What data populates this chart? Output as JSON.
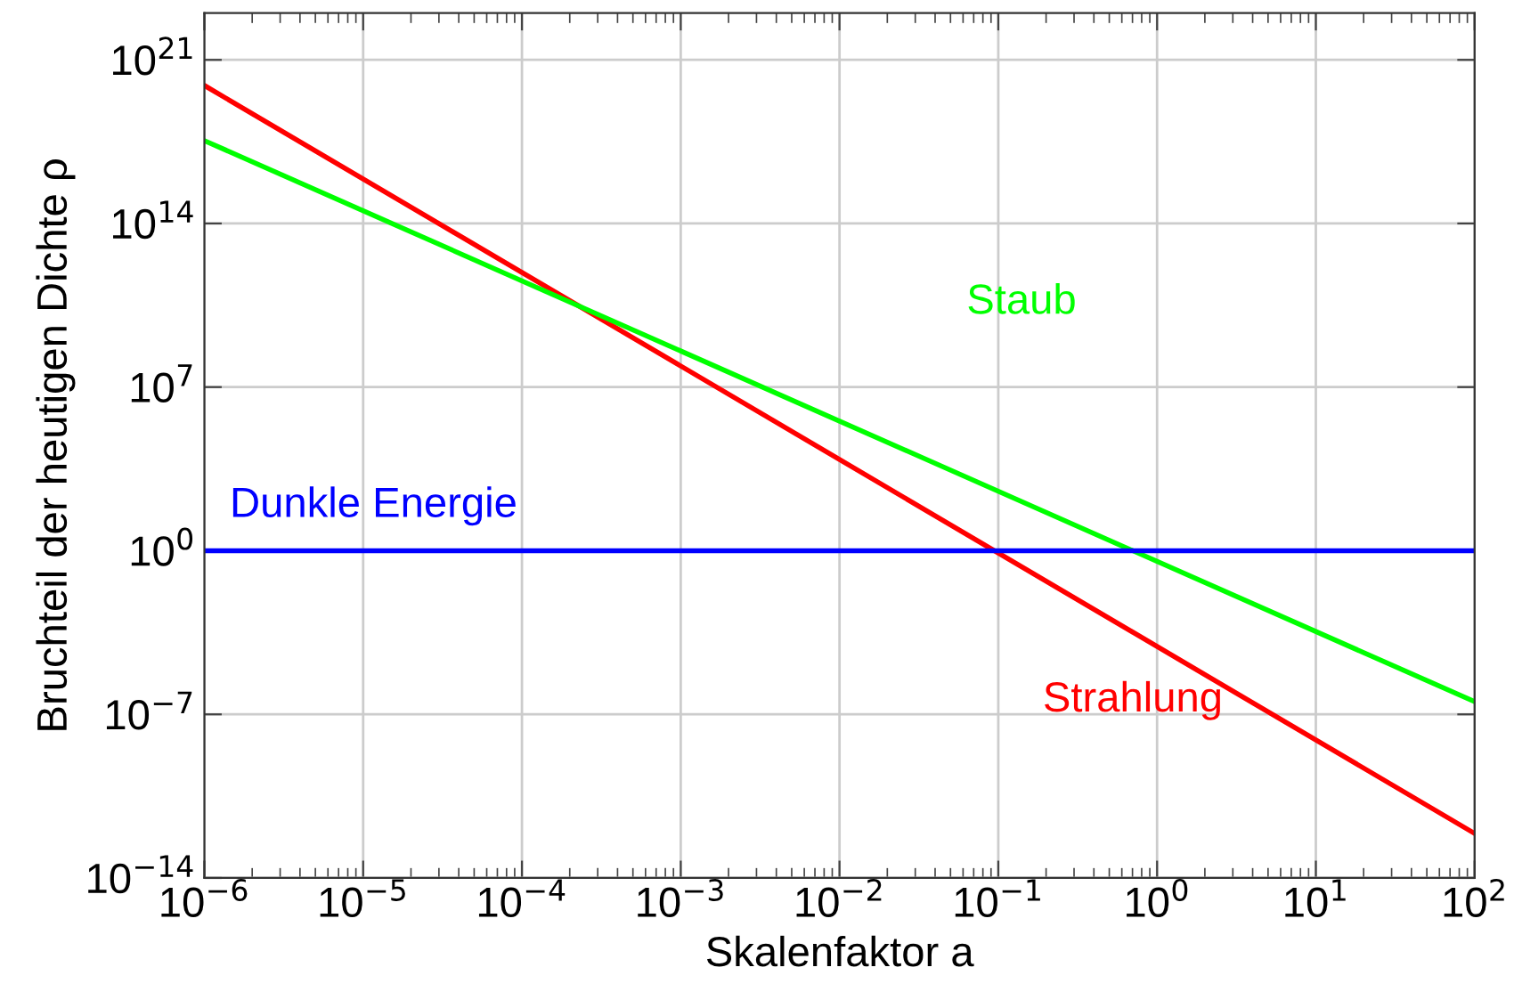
{
  "chart_data": {
    "type": "line",
    "xlabel": "Skalenfaktor a",
    "ylabel": "Bruchteil der heutigen Dichte ρ",
    "log": "xy",
    "grid": true,
    "line_style": "solid",
    "xlim": [
      1e-06,
      100
    ],
    "ylim": [
      1e-14,
      1e+23
    ],
    "xticks": [
      {
        "value": 1e-06,
        "label": "10$^{−6}$"
      },
      {
        "value": 1e-05,
        "label": "10$^{−5}$"
      },
      {
        "value": 0.0001,
        "label": "10$^{−4}$"
      },
      {
        "value": 0.001,
        "label": "10$^{−3}$"
      },
      {
        "value": 0.01,
        "label": "10$^{−2}$"
      },
      {
        "value": 0.1,
        "label": "10$^{−1}$"
      },
      {
        "value": 1,
        "label": "10$^{0}$"
      },
      {
        "value": 10,
        "label": "10$^{1}$"
      },
      {
        "value": 100,
        "label": "10$^{2}$"
      }
    ],
    "yticks": [
      {
        "value": 1e-14,
        "label": "10$^{−14}$"
      },
      {
        "value": 1e-07,
        "label": "10$^{−7}$"
      },
      {
        "value": 1,
        "label": "10$^{0}$"
      },
      {
        "value": 10000000.0,
        "label": "10$^{7}$"
      },
      {
        "value": 100000000000000.0,
        "label": "10$^{14}$"
      },
      {
        "value": 1e+21,
        "label": "10$^{21}$"
      }
    ],
    "x": [
      1e-06,
      100
    ],
    "series": [
      {
        "name": "Strahlung",
        "color": "#ff0000",
        "values": [
          8e+19,
          8e-13
        ]
      },
      {
        "name": "Staub",
        "color": "#00ff00",
        "values": [
          3.5e+17,
          3.5e-07
        ]
      },
      {
        "name": "Dunkle Energie",
        "color": "#0000ff",
        "values": [
          1,
          1
        ]
      }
    ]
  }
}
